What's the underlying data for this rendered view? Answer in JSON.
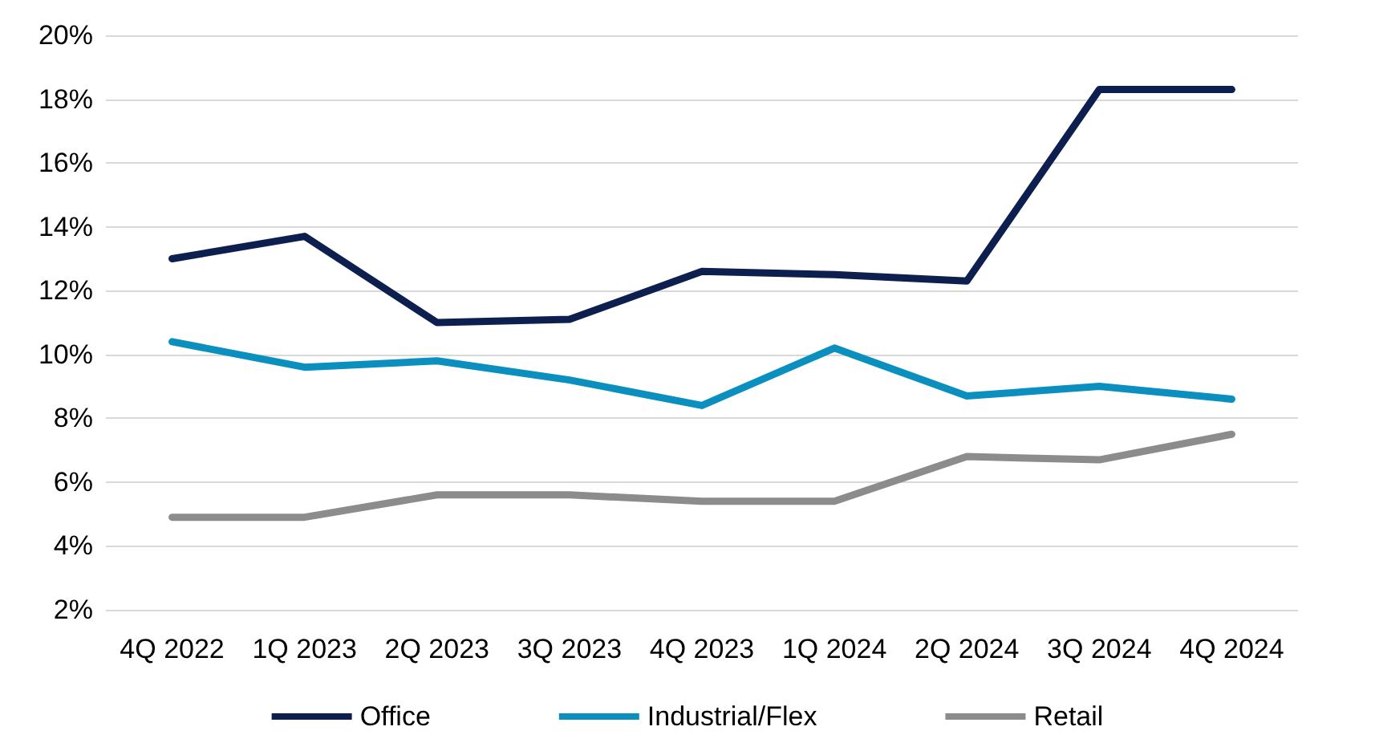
{
  "chart_data": {
    "type": "line",
    "categories": [
      "4Q 2022",
      "1Q 2023",
      "2Q 2023",
      "3Q 2023",
      "4Q 2023",
      "1Q 2024",
      "2Q 2024",
      "3Q 2024",
      "4Q 2024"
    ],
    "series": [
      {
        "name": "Office",
        "color": "#0c1f4f",
        "values": [
          13.0,
          13.7,
          11.0,
          11.1,
          12.6,
          12.5,
          12.3,
          18.3,
          18.3
        ]
      },
      {
        "name": "Industrial/Flex",
        "color": "#0b8fbf",
        "values": [
          10.4,
          9.6,
          9.8,
          9.2,
          8.4,
          10.2,
          8.7,
          9.0,
          8.6
        ]
      },
      {
        "name": "Retail",
        "color": "#8c8c8c",
        "values": [
          4.9,
          4.9,
          5.6,
          5.6,
          5.4,
          5.4,
          6.8,
          6.7,
          7.5
        ]
      }
    ],
    "ylim": [
      2,
      20
    ],
    "yticks": [
      {
        "value": 2,
        "label": "2%"
      },
      {
        "value": 4,
        "label": "4%"
      },
      {
        "value": 6,
        "label": "6%"
      },
      {
        "value": 8,
        "label": "8%"
      },
      {
        "value": 10,
        "label": "10%"
      },
      {
        "value": 12,
        "label": "12%"
      },
      {
        "value": 14,
        "label": "14%"
      },
      {
        "value": 16,
        "label": "16%"
      },
      {
        "value": 18,
        "label": "18%"
      },
      {
        "value": 20,
        "label": "20%"
      }
    ],
    "grid": "y",
    "legend": "bottom",
    "marker": "none",
    "line_style": "solid"
  }
}
